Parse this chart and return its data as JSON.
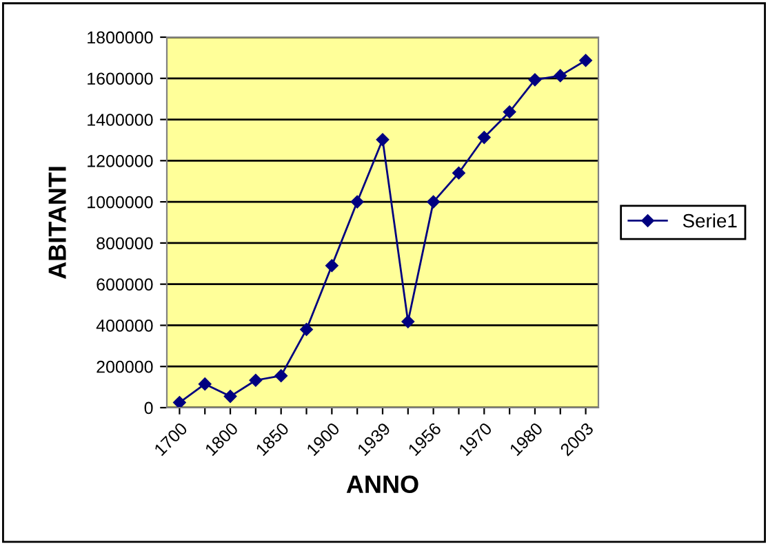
{
  "chart_data": {
    "type": "line",
    "xlabel": "ANNO",
    "ylabel": "ABITANTI",
    "categories": [
      "1700",
      null,
      "1800",
      null,
      "1850",
      null,
      "1900",
      null,
      "1939",
      null,
      "1956",
      null,
      "1970",
      null,
      "1980",
      null,
      "2003"
    ],
    "series": [
      {
        "name": "Serie1",
        "color": "#000080",
        "values": [
          25000,
          115000,
          55000,
          133000,
          155000,
          380000,
          690000,
          1000000,
          1302000,
          418000,
          1000000,
          1140000,
          1313000,
          1437000,
          1593000,
          1613000,
          1687000
        ]
      }
    ],
    "ylim": [
      0,
      1800000
    ],
    "yticks": [
      0,
      200000,
      400000,
      600000,
      800000,
      1000000,
      1200000,
      1400000,
      1600000,
      1800000
    ],
    "grid": "y",
    "legend": "right",
    "marker": "diamond",
    "line_style": "solid"
  }
}
